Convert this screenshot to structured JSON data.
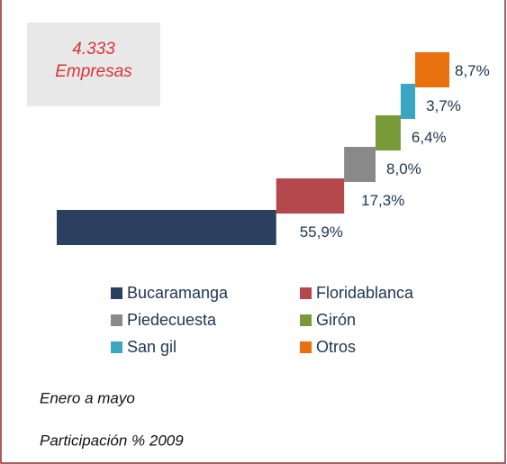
{
  "chart_data": {
    "type": "waterfall",
    "annotations": [
      "4.333",
      "Empresas"
    ],
    "categories": [
      "Bucaramanga",
      "Floridablanca",
      "Piedecuesta",
      "Girón",
      "San gil",
      "Otros"
    ],
    "values": [
      55.9,
      17.3,
      8.0,
      6.4,
      3.7,
      8.7
    ],
    "value_labels": [
      "55,9%",
      "17,3%",
      "8,0%",
      "6,4%",
      "3,7%",
      "8,7%"
    ],
    "colors": [
      "#2b3f5e",
      "#b5484d",
      "#898989",
      "#789a39",
      "#3ba6c1",
      "#e9700f"
    ],
    "subtitle": "Enero a mayo",
    "caption": "Participación % 2009"
  }
}
